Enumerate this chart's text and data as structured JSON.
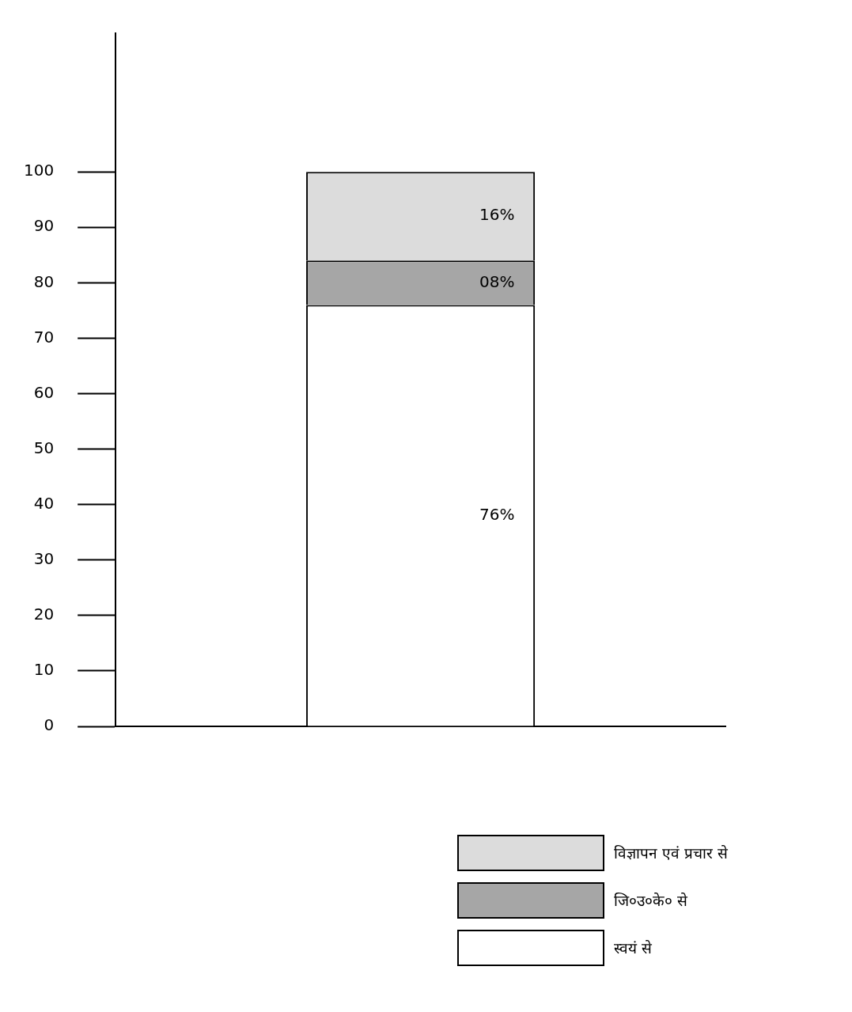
{
  "chart_data": {
    "type": "bar",
    "stacked": true,
    "categories": [
      null
    ],
    "series": [
      {
        "name": "स्वयं से",
        "color": "#ffffff",
        "values": [
          76
        ],
        "value_labels": [
          "76%"
        ]
      },
      {
        "name": "जि०उ०के० से",
        "color": "#a6a6a6",
        "values": [
          8
        ],
        "value_labels": [
          "08%"
        ]
      },
      {
        "name": "विज्ञापन एवं प्रचार से",
        "color": "#dcdcdc",
        "values": [
          16
        ],
        "value_labels": [
          "16%"
        ]
      }
    ],
    "ylim": [
      0,
      125
    ],
    "yticks": [
      0,
      10,
      20,
      30,
      40,
      50,
      60,
      70,
      80,
      90,
      100
    ],
    "grid": false,
    "tick_labels": "y",
    "legend": "bottom right"
  }
}
